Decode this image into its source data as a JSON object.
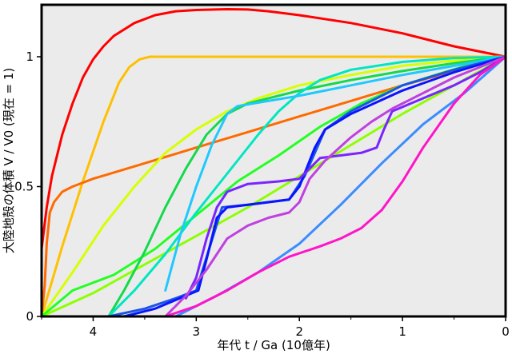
{
  "chart_data": {
    "type": "line",
    "title": "",
    "xlabel": "年代 t / Ga (10億年)",
    "ylabel": "大陸地殻の体積 V / V0 (現在 = 1)",
    "xlim": [
      4.5,
      0
    ],
    "ylim": [
      0,
      1.2
    ],
    "x_reversed": true,
    "grid": false,
    "legend": "none",
    "plot_background": "#ebebeb",
    "x_ticks": [
      4,
      3,
      2,
      1,
      0
    ],
    "y_ticks": [
      0,
      0.5,
      1
    ],
    "x_tick_labels": [
      "4",
      "3",
      "2",
      "1",
      "0"
    ],
    "y_tick_labels": [
      "0",
      "0.5",
      "1"
    ],
    "series": [
      {
        "color": "#ff0000",
        "points": [
          [
            4.5,
            0.26
          ],
          [
            4.45,
            0.42
          ],
          [
            4.4,
            0.54
          ],
          [
            4.3,
            0.7
          ],
          [
            4.2,
            0.82
          ],
          [
            4.1,
            0.92
          ],
          [
            4.0,
            0.99
          ],
          [
            3.9,
            1.04
          ],
          [
            3.8,
            1.08
          ],
          [
            3.6,
            1.13
          ],
          [
            3.4,
            1.16
          ],
          [
            3.2,
            1.175
          ],
          [
            3.0,
            1.18
          ],
          [
            2.7,
            1.183
          ],
          [
            2.5,
            1.182
          ],
          [
            2.3,
            1.175
          ],
          [
            2.0,
            1.16
          ],
          [
            1.5,
            1.13
          ],
          [
            1.0,
            1.09
          ],
          [
            0.5,
            1.04
          ],
          [
            0,
            1.0
          ]
        ]
      },
      {
        "color": "#ffc000",
        "points": [
          [
            4.5,
            0.0
          ],
          [
            4.3,
            0.27
          ],
          [
            4.1,
            0.52
          ],
          [
            3.9,
            0.75
          ],
          [
            3.75,
            0.9
          ],
          [
            3.65,
            0.96
          ],
          [
            3.55,
            0.99
          ],
          [
            3.45,
            1.0
          ],
          [
            3.2,
            1.0
          ],
          [
            2.0,
            1.0
          ],
          [
            0,
            1.0
          ]
        ]
      },
      {
        "color": "#ff6a00",
        "points": [
          [
            4.5,
            0.0
          ],
          [
            4.47,
            0.12
          ],
          [
            4.45,
            0.28
          ],
          [
            4.42,
            0.4
          ],
          [
            4.38,
            0.44
          ],
          [
            4.3,
            0.48
          ],
          [
            4.2,
            0.5
          ],
          [
            4.0,
            0.53
          ],
          [
            3.5,
            0.59
          ],
          [
            3.0,
            0.65
          ],
          [
            2.5,
            0.71
          ],
          [
            2.0,
            0.77
          ],
          [
            1.5,
            0.83
          ],
          [
            1.0,
            0.89
          ],
          [
            0.5,
            0.945
          ],
          [
            0,
            1.0
          ]
        ]
      },
      {
        "color": "#d6ff00",
        "points": [
          [
            4.5,
            0.0
          ],
          [
            4.2,
            0.17
          ],
          [
            3.9,
            0.35
          ],
          [
            3.6,
            0.5
          ],
          [
            3.3,
            0.63
          ],
          [
            3.0,
            0.72
          ],
          [
            2.7,
            0.79
          ],
          [
            2.4,
            0.84
          ],
          [
            2.0,
            0.89
          ],
          [
            1.5,
            0.93
          ],
          [
            1.0,
            0.965
          ],
          [
            0.5,
            0.985
          ],
          [
            0,
            1.0
          ]
        ]
      },
      {
        "color": "#8cff00",
        "points": [
          [
            4.5,
            0.0
          ],
          [
            4.0,
            0.09
          ],
          [
            3.5,
            0.2
          ],
          [
            3.0,
            0.31
          ],
          [
            2.5,
            0.42
          ],
          [
            2.0,
            0.54
          ],
          [
            1.5,
            0.66
          ],
          [
            1.0,
            0.78
          ],
          [
            0.5,
            0.89
          ],
          [
            0,
            1.0
          ]
        ]
      },
      {
        "color": "#22ff22",
        "points": [
          [
            4.5,
            0.0
          ],
          [
            4.2,
            0.1
          ],
          [
            3.8,
            0.16
          ],
          [
            3.4,
            0.26
          ],
          [
            3.0,
            0.39
          ],
          [
            2.6,
            0.52
          ],
          [
            2.2,
            0.62
          ],
          [
            1.8,
            0.73
          ],
          [
            1.4,
            0.82
          ],
          [
            1.0,
            0.89
          ],
          [
            0.6,
            0.94
          ],
          [
            0.3,
            0.975
          ],
          [
            0,
            1.0
          ]
        ]
      },
      {
        "color": "#14d94c",
        "points": [
          [
            3.85,
            0.0
          ],
          [
            3.7,
            0.1
          ],
          [
            3.5,
            0.25
          ],
          [
            3.3,
            0.42
          ],
          [
            3.1,
            0.57
          ],
          [
            2.9,
            0.7
          ],
          [
            2.7,
            0.78
          ],
          [
            2.5,
            0.82
          ],
          [
            2.0,
            0.87
          ],
          [
            1.5,
            0.91
          ],
          [
            1.0,
            0.945
          ],
          [
            0.5,
            0.975
          ],
          [
            0,
            1.0
          ]
        ]
      },
      {
        "color": "#00e6c3",
        "points": [
          [
            3.85,
            0.0
          ],
          [
            3.6,
            0.1
          ],
          [
            3.3,
            0.24
          ],
          [
            3.0,
            0.4
          ],
          [
            2.8,
            0.5
          ],
          [
            2.6,
            0.6
          ],
          [
            2.4,
            0.7
          ],
          [
            2.2,
            0.79
          ],
          [
            2.0,
            0.86
          ],
          [
            1.8,
            0.91
          ],
          [
            1.5,
            0.95
          ],
          [
            1.0,
            0.98
          ],
          [
            0.5,
            0.995
          ],
          [
            0,
            1.0
          ]
        ]
      },
      {
        "color": "#20c8ff",
        "points": [
          [
            3.3,
            0.1
          ],
          [
            3.15,
            0.32
          ],
          [
            3.0,
            0.5
          ],
          [
            2.85,
            0.66
          ],
          [
            2.7,
            0.78
          ],
          [
            2.6,
            0.81
          ],
          [
            2.0,
            0.85
          ],
          [
            1.5,
            0.89
          ],
          [
            1.0,
            0.93
          ],
          [
            0.5,
            0.965
          ],
          [
            0,
            1.0
          ]
        ]
      },
      {
        "color": "#3c8cff",
        "points": [
          [
            3.2,
            0.0
          ],
          [
            2.8,
            0.08
          ],
          [
            2.4,
            0.17
          ],
          [
            2.0,
            0.28
          ],
          [
            1.6,
            0.43
          ],
          [
            1.2,
            0.59
          ],
          [
            0.8,
            0.74
          ],
          [
            0.4,
            0.86
          ],
          [
            0,
            1.0
          ]
        ]
      },
      {
        "color": "#1a55e6",
        "points": [
          [
            3.85,
            0.0
          ],
          [
            3.5,
            0.03
          ],
          [
            3.2,
            0.07
          ],
          [
            3.0,
            0.1
          ],
          [
            2.75,
            0.42
          ],
          [
            2.5,
            0.43
          ],
          [
            2.3,
            0.44
          ],
          [
            2.1,
            0.45
          ],
          [
            1.95,
            0.54
          ],
          [
            1.75,
            0.72
          ],
          [
            1.5,
            0.79
          ],
          [
            1.0,
            0.89
          ],
          [
            0.5,
            0.95
          ],
          [
            0,
            1.0
          ]
        ]
      },
      {
        "color": "#0a14ff",
        "points": [
          [
            3.7,
            0.0
          ],
          [
            3.4,
            0.03
          ],
          [
            3.1,
            0.08
          ],
          [
            2.98,
            0.1
          ],
          [
            2.9,
            0.22
          ],
          [
            2.8,
            0.38
          ],
          [
            2.7,
            0.42
          ],
          [
            2.3,
            0.44
          ],
          [
            2.1,
            0.45
          ],
          [
            2.0,
            0.5
          ],
          [
            1.85,
            0.65
          ],
          [
            1.75,
            0.72
          ],
          [
            1.5,
            0.78
          ],
          [
            1.0,
            0.87
          ],
          [
            0.5,
            0.94
          ],
          [
            0,
            1.0
          ]
        ]
      },
      {
        "color": "#7a24ff",
        "points": [
          [
            3.1,
            0.07
          ],
          [
            3.0,
            0.15
          ],
          [
            2.9,
            0.3
          ],
          [
            2.8,
            0.42
          ],
          [
            2.7,
            0.48
          ],
          [
            2.5,
            0.51
          ],
          [
            2.2,
            0.52
          ],
          [
            2.0,
            0.53
          ],
          [
            1.9,
            0.57
          ],
          [
            1.8,
            0.61
          ],
          [
            1.6,
            0.62
          ],
          [
            1.4,
            0.63
          ],
          [
            1.25,
            0.65
          ],
          [
            1.18,
            0.72
          ],
          [
            1.1,
            0.79
          ],
          [
            0.8,
            0.84
          ],
          [
            0.5,
            0.89
          ],
          [
            0.25,
            0.94
          ],
          [
            0,
            1.0
          ]
        ]
      },
      {
        "color": "#c040e0",
        "points": [
          [
            3.3,
            0.0
          ],
          [
            3.1,
            0.08
          ],
          [
            2.9,
            0.18
          ],
          [
            2.7,
            0.3
          ],
          [
            2.5,
            0.35
          ],
          [
            2.3,
            0.38
          ],
          [
            2.1,
            0.4
          ],
          [
            2.0,
            0.44
          ],
          [
            1.9,
            0.53
          ],
          [
            1.75,
            0.6
          ],
          [
            1.5,
            0.69
          ],
          [
            1.3,
            0.75
          ],
          [
            1.1,
            0.8
          ],
          [
            0.8,
            0.86
          ],
          [
            0.5,
            0.92
          ],
          [
            0.25,
            0.96
          ],
          [
            0,
            1.0
          ]
        ]
      },
      {
        "color": "#ff14c8",
        "points": [
          [
            3.3,
            0.0
          ],
          [
            3.0,
            0.04
          ],
          [
            2.7,
            0.1
          ],
          [
            2.4,
            0.17
          ],
          [
            2.1,
            0.23
          ],
          [
            1.8,
            0.27
          ],
          [
            1.6,
            0.3
          ],
          [
            1.4,
            0.34
          ],
          [
            1.2,
            0.41
          ],
          [
            1.0,
            0.52
          ],
          [
            0.8,
            0.65
          ],
          [
            0.5,
            0.82
          ],
          [
            0.25,
            0.93
          ],
          [
            0,
            1.0
          ]
        ]
      }
    ]
  }
}
